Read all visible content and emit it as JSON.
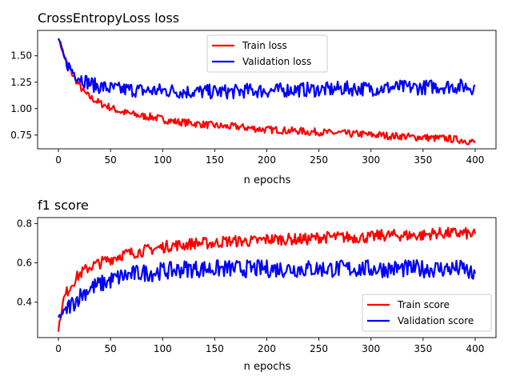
{
  "colors": {
    "train": "#ff0000",
    "validation": "#0000ff"
  },
  "chart_data": [
    {
      "type": "line",
      "title": "CrossEntropyLoss loss",
      "xlabel": "n epochs",
      "ylabel": "",
      "xlim": [
        -20,
        420
      ],
      "ylim": [
        0.62,
        1.74
      ],
      "xticks": [
        0,
        50,
        100,
        150,
        200,
        250,
        300,
        350,
        400
      ],
      "yticks": [
        0.75,
        1.0,
        1.25,
        1.5
      ],
      "ytick_labels": [
        "0.75",
        "1.00",
        "1.25",
        "1.50"
      ],
      "legend": "top-center",
      "grid": false,
      "series": [
        {
          "name": "Train loss",
          "color": "#ff0000",
          "x": [
            0,
            5,
            10,
            15,
            20,
            25,
            30,
            35,
            40,
            45,
            50,
            60,
            70,
            80,
            90,
            100,
            110,
            120,
            130,
            140,
            150,
            160,
            170,
            180,
            190,
            200,
            210,
            220,
            230,
            240,
            250,
            260,
            270,
            280,
            290,
            300,
            310,
            320,
            330,
            340,
            350,
            360,
            370,
            380,
            390,
            400
          ],
          "y": [
            1.67,
            1.5,
            1.38,
            1.3,
            1.22,
            1.15,
            1.11,
            1.08,
            1.05,
            1.03,
            1.01,
            0.97,
            0.95,
            0.93,
            0.92,
            0.9,
            0.88,
            0.87,
            0.86,
            0.85,
            0.84,
            0.83,
            0.83,
            0.82,
            0.81,
            0.8,
            0.8,
            0.79,
            0.79,
            0.78,
            0.78,
            0.77,
            0.77,
            0.76,
            0.76,
            0.75,
            0.75,
            0.74,
            0.74,
            0.73,
            0.73,
            0.72,
            0.72,
            0.71,
            0.7,
            0.68
          ]
        },
        {
          "name": "Validation loss",
          "color": "#0000ff",
          "x": [
            0,
            5,
            10,
            15,
            20,
            25,
            30,
            35,
            40,
            45,
            50,
            60,
            70,
            80,
            90,
            100,
            110,
            120,
            130,
            140,
            150,
            160,
            170,
            180,
            190,
            200,
            210,
            220,
            230,
            240,
            250,
            260,
            270,
            280,
            290,
            300,
            310,
            320,
            330,
            340,
            350,
            360,
            370,
            380,
            390,
            400
          ],
          "y": [
            1.67,
            1.5,
            1.4,
            1.34,
            1.3,
            1.27,
            1.24,
            1.22,
            1.21,
            1.2,
            1.19,
            1.18,
            1.18,
            1.17,
            1.17,
            1.17,
            1.17,
            1.16,
            1.16,
            1.16,
            1.16,
            1.16,
            1.16,
            1.17,
            1.17,
            1.17,
            1.17,
            1.18,
            1.18,
            1.18,
            1.18,
            1.18,
            1.19,
            1.19,
            1.19,
            1.19,
            1.19,
            1.2,
            1.2,
            1.2,
            1.2,
            1.21,
            1.21,
            1.21,
            1.21,
            1.2
          ]
        }
      ]
    },
    {
      "type": "line",
      "title": "f1 score",
      "xlabel": "n epochs",
      "ylabel": "",
      "xlim": [
        -20,
        420
      ],
      "ylim": [
        0.22,
        0.83
      ],
      "xticks": [
        0,
        50,
        100,
        150,
        200,
        250,
        300,
        350,
        400
      ],
      "yticks": [
        0.4,
        0.6,
        0.8
      ],
      "ytick_labels": [
        "0.4",
        "0.6",
        "0.8"
      ],
      "legend": "bottom-right",
      "grid": false,
      "series": [
        {
          "name": "Train score",
          "color": "#ff0000",
          "x": [
            0,
            5,
            10,
            15,
            20,
            25,
            30,
            35,
            40,
            45,
            50,
            60,
            70,
            80,
            90,
            100,
            110,
            120,
            130,
            140,
            150,
            160,
            170,
            180,
            190,
            200,
            210,
            220,
            230,
            240,
            250,
            260,
            270,
            280,
            290,
            300,
            310,
            320,
            330,
            340,
            350,
            360,
            370,
            380,
            390,
            400
          ],
          "y": [
            0.26,
            0.42,
            0.47,
            0.51,
            0.54,
            0.56,
            0.58,
            0.59,
            0.6,
            0.61,
            0.62,
            0.64,
            0.65,
            0.66,
            0.67,
            0.68,
            0.69,
            0.69,
            0.7,
            0.7,
            0.7,
            0.71,
            0.71,
            0.71,
            0.71,
            0.72,
            0.72,
            0.72,
            0.72,
            0.72,
            0.73,
            0.73,
            0.73,
            0.73,
            0.73,
            0.73,
            0.74,
            0.74,
            0.74,
            0.74,
            0.74,
            0.75,
            0.75,
            0.75,
            0.75,
            0.74
          ]
        },
        {
          "name": "Validation score",
          "color": "#0000ff",
          "x": [
            0,
            5,
            10,
            15,
            20,
            25,
            30,
            35,
            40,
            45,
            50,
            60,
            70,
            80,
            90,
            100,
            110,
            120,
            130,
            140,
            150,
            160,
            170,
            180,
            190,
            200,
            210,
            220,
            230,
            240,
            250,
            260,
            270,
            280,
            290,
            300,
            310,
            320,
            330,
            340,
            350,
            360,
            370,
            380,
            390,
            400
          ],
          "y": [
            0.32,
            0.35,
            0.38,
            0.4,
            0.43,
            0.45,
            0.47,
            0.48,
            0.49,
            0.5,
            0.51,
            0.53,
            0.54,
            0.55,
            0.55,
            0.56,
            0.56,
            0.57,
            0.57,
            0.57,
            0.57,
            0.57,
            0.57,
            0.57,
            0.57,
            0.57,
            0.57,
            0.57,
            0.57,
            0.57,
            0.57,
            0.57,
            0.57,
            0.57,
            0.57,
            0.57,
            0.57,
            0.57,
            0.57,
            0.57,
            0.57,
            0.57,
            0.57,
            0.57,
            0.57,
            0.52
          ]
        }
      ]
    }
  ]
}
